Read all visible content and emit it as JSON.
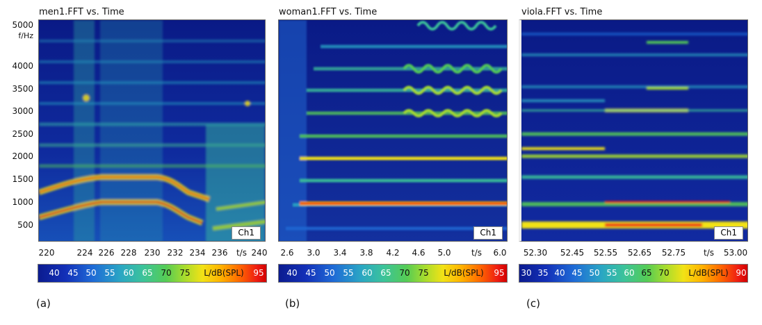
{
  "chart_data": [
    {
      "type": "heatmap",
      "title": "men1.FFT vs. Time",
      "ylabel": "f/Hz",
      "xlabel": "t/s",
      "yticks": [
        "5000",
        "4000",
        "3500",
        "3000",
        "2500",
        "2000",
        "1500",
        "1000",
        "500"
      ],
      "ylim": [
        100,
        5200
      ],
      "xticks": [
        "220",
        "224",
        "226",
        "228",
        "230",
        "232",
        "234",
        "236",
        "240"
      ],
      "xlim": [
        219.5,
        240.5
      ],
      "channel": "Ch1",
      "colorbar": {
        "ticks": [
          "40",
          "45",
          "50",
          "55",
          "60",
          "65",
          "70",
          "75"
        ],
        "unit_label": "L/dB(SPL)",
        "max": "95"
      },
      "panel_label": "(a)"
    },
    {
      "type": "heatmap",
      "title": "woman1.FFT vs. Time",
      "xlabel": "t/s",
      "xticks": [
        "2.6",
        "3.0",
        "3.4",
        "3.8",
        "4.2",
        "4.6",
        "5.0"
      ],
      "x_last": "6.0",
      "xlim": [
        2.55,
        6.05
      ],
      "channel": "Ch1",
      "colorbar": {
        "ticks": [
          "40",
          "45",
          "50",
          "55",
          "60",
          "65",
          "70",
          "75"
        ],
        "unit_label": "L/dB(SPL)",
        "max": "95"
      },
      "panel_label": "(b)"
    },
    {
      "type": "heatmap",
      "title": "viola.FFT vs. Time",
      "xlabel": "t/s",
      "xticks": [
        "52.30",
        "52.45",
        "52.55",
        "52.65",
        "52.75"
      ],
      "x_last": "53.00",
      "xlim": [
        52.29,
        53.01
      ],
      "channel": "Ch1",
      "colorbar": {
        "ticks": [
          "30",
          "35",
          "40",
          "45",
          "50",
          "55",
          "60",
          "65",
          "70"
        ],
        "unit_label": "L/dB(SPL)",
        "max": "90"
      },
      "panel_label": "(c)"
    }
  ]
}
